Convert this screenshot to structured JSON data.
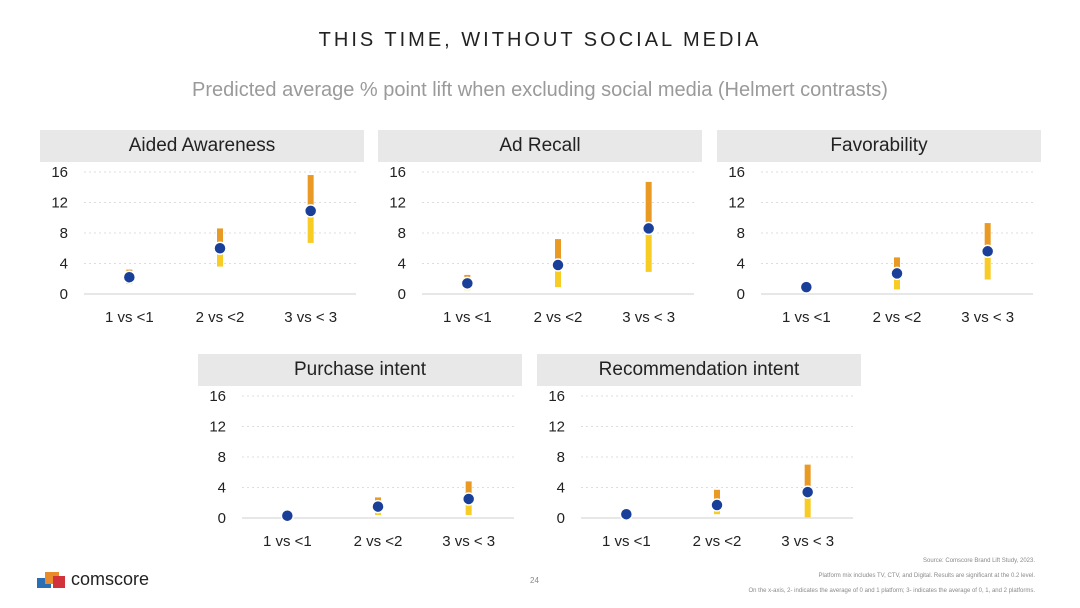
{
  "title": "THIS TIME, WITHOUT SOCIAL MEDIA",
  "subtitle": "Predicted average % point lift when excluding social media (Helmert contrasts)",
  "page_number": "24",
  "brand": "comscore",
  "footnotes": [
    "Source: Comscore Brand Lift Study, 2023.",
    "Platform mix includes TV, CTV, and Digital. Results are significant at the 0.2 level.",
    "On the x-axis, 2- indicates the average of 0 and 1 platform; 3- indicates the average of 0, 1, and 2 platforms."
  ],
  "colors": {
    "point": "#1a3f99",
    "bar_upper": "#e99a24",
    "bar_lower": "#f7cc25",
    "header_bg": "#e8e8e8",
    "grid": "#dddddd"
  },
  "chart_data": [
    {
      "type": "scatter",
      "title": "Aided Awareness",
      "categories": [
        "1 vs <1",
        "2 vs <2",
        "3 vs < 3"
      ],
      "ylim": [
        0,
        16
      ],
      "yticks": [
        0,
        4,
        8,
        12,
        16
      ],
      "values": [
        2.2,
        6.0,
        10.9
      ],
      "lower": [
        1.3,
        3.6,
        6.7
      ],
      "upper": [
        3.2,
        8.6,
        15.6
      ]
    },
    {
      "type": "scatter",
      "title": "Ad Recall",
      "categories": [
        "1 vs <1",
        "2 vs <2",
        "3 vs < 3"
      ],
      "ylim": [
        0,
        16
      ],
      "yticks": [
        0,
        4,
        8,
        12,
        16
      ],
      "values": [
        1.4,
        3.8,
        8.6
      ],
      "lower": [
        0.5,
        0.9,
        2.9
      ],
      "upper": [
        2.5,
        7.2,
        14.7
      ]
    },
    {
      "type": "scatter",
      "title": "Favorability",
      "categories": [
        "1 vs <1",
        "2 vs <2",
        "3 vs < 3"
      ],
      "ylim": [
        0,
        16
      ],
      "yticks": [
        0,
        4,
        8,
        12,
        16
      ],
      "values": [
        0.9,
        2.7,
        5.6
      ],
      "lower": [
        0.2,
        0.6,
        1.9
      ],
      "upper": [
        1.5,
        4.8,
        9.3
      ]
    },
    {
      "type": "scatter",
      "title": "Purchase intent",
      "categories": [
        "1 vs <1",
        "2 vs <2",
        "3 vs < 3"
      ],
      "ylim": [
        0,
        16
      ],
      "yticks": [
        0,
        4,
        8,
        12,
        16
      ],
      "values": [
        0.3,
        1.5,
        2.5
      ],
      "lower": [
        0.0,
        0.4,
        0.4
      ],
      "upper": [
        0.6,
        2.7,
        4.8
      ]
    },
    {
      "type": "scatter",
      "title": "Recommendation intent",
      "categories": [
        "1 vs <1",
        "2 vs <2",
        "3 vs < 3"
      ],
      "ylim": [
        0,
        16
      ],
      "yticks": [
        0,
        4,
        8,
        12,
        16
      ],
      "values": [
        0.5,
        1.7,
        3.4
      ],
      "lower": [
        0.0,
        0.5,
        0.1
      ],
      "upper": [
        0.9,
        3.7,
        7.0
      ]
    }
  ]
}
